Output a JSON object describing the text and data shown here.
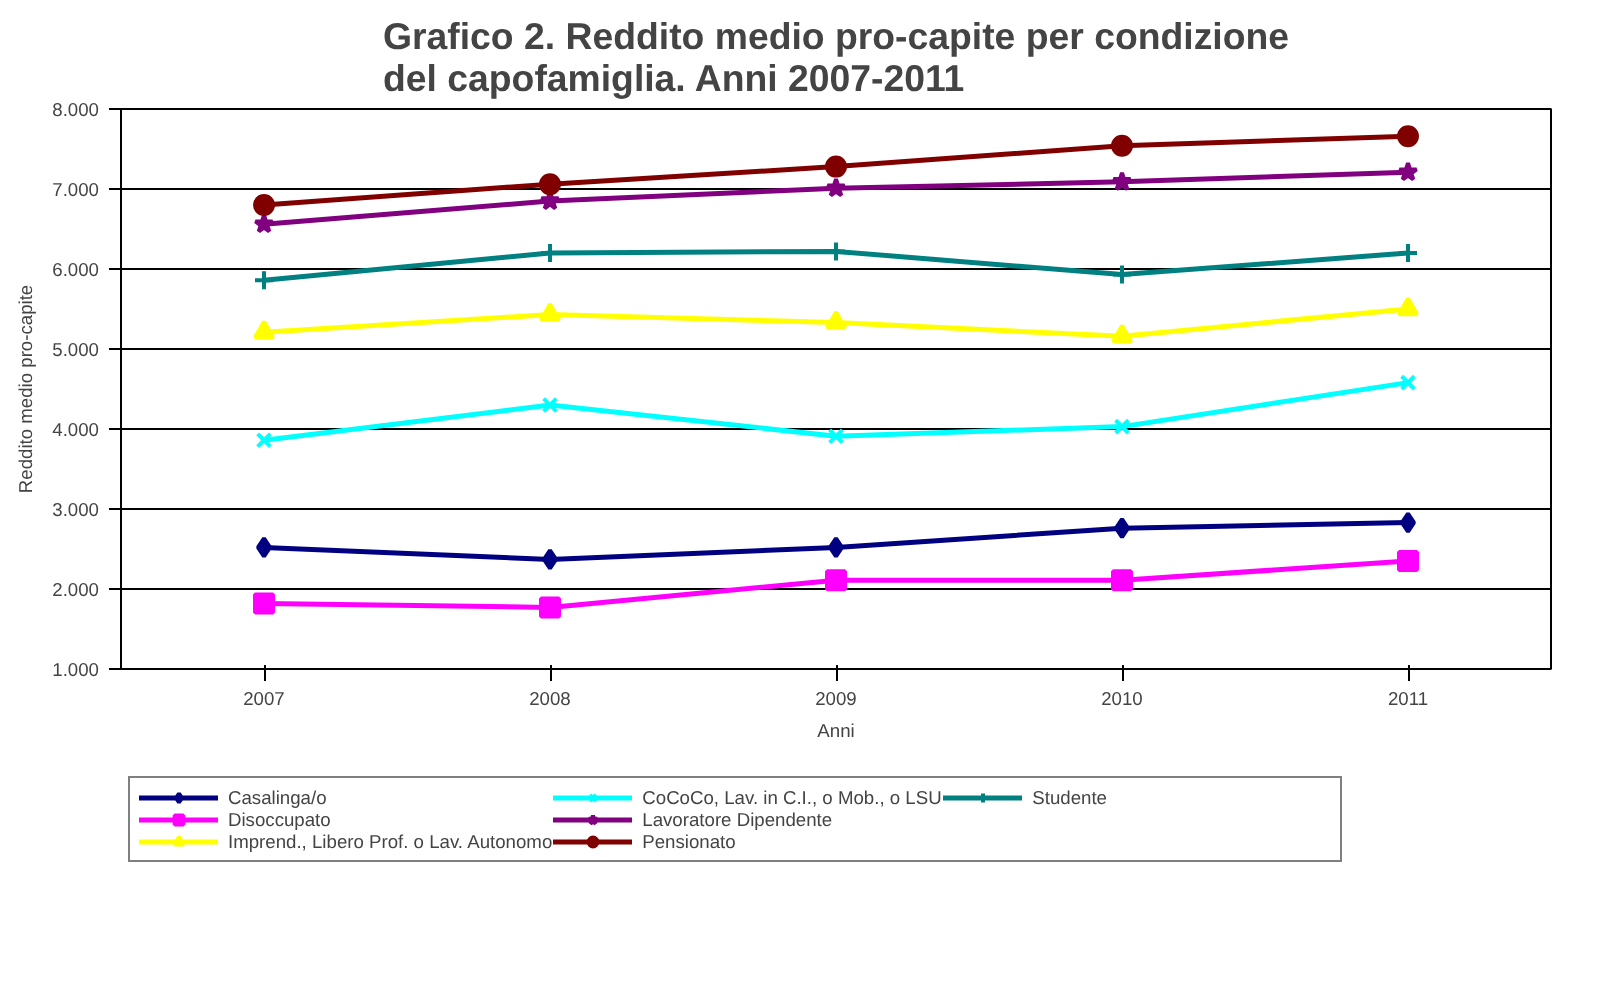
{
  "chart_data": {
    "type": "line",
    "title": "Grafico 2. Reddito medio pro-capite per condizione del capofamiglia. Anni 2007-2011",
    "xlabel": "Anni",
    "ylabel": "Reddito medio pro-capite",
    "categories": [
      "2007",
      "2008",
      "2009",
      "2010",
      "2011"
    ],
    "ylim": [
      1000,
      8000
    ],
    "yticks": [
      {
        "value": 1000,
        "label": "1.000"
      },
      {
        "value": 2000,
        "label": "2.000"
      },
      {
        "value": 3000,
        "label": "3.000"
      },
      {
        "value": 4000,
        "label": "4.000"
      },
      {
        "value": 5000,
        "label": "5.000"
      },
      {
        "value": 6000,
        "label": "6.000"
      },
      {
        "value": 7000,
        "label": "7.000"
      },
      {
        "value": 8000,
        "label": "8.000"
      }
    ],
    "grid": "y",
    "legend": "bottom",
    "line_style": "solid",
    "series": [
      {
        "name": "Casalinga/o",
        "color": "#000080",
        "marker": "diamond",
        "values": [
          2520,
          2370,
          2520,
          2760,
          2830
        ]
      },
      {
        "name": "Disoccupato",
        "color": "#ff00ff",
        "marker": "square",
        "values": [
          1820,
          1770,
          2110,
          2110,
          2350
        ]
      },
      {
        "name": "Imprend., Libero Prof. o Lav. Autonomo",
        "color": "#ffff00",
        "marker": "triangle",
        "values": [
          5210,
          5430,
          5330,
          5160,
          5500
        ]
      },
      {
        "name": "CoCoCo, Lav. in C.I., o Mob., o LSU",
        "color": "#00ffff",
        "marker": "cross",
        "values": [
          3860,
          4300,
          3910,
          4030,
          4580
        ]
      },
      {
        "name": "Lavoratore Dipendente",
        "color": "#800080",
        "marker": "star",
        "values": [
          6560,
          6850,
          7010,
          7090,
          7210
        ]
      },
      {
        "name": "Pensionato",
        "color": "#800000",
        "marker": "circle",
        "values": [
          6800,
          7060,
          7280,
          7540,
          7660
        ]
      },
      {
        "name": "Studente",
        "color": "#008080",
        "marker": "plus",
        "values": [
          5860,
          6200,
          6220,
          5930,
          6200
        ]
      }
    ]
  }
}
